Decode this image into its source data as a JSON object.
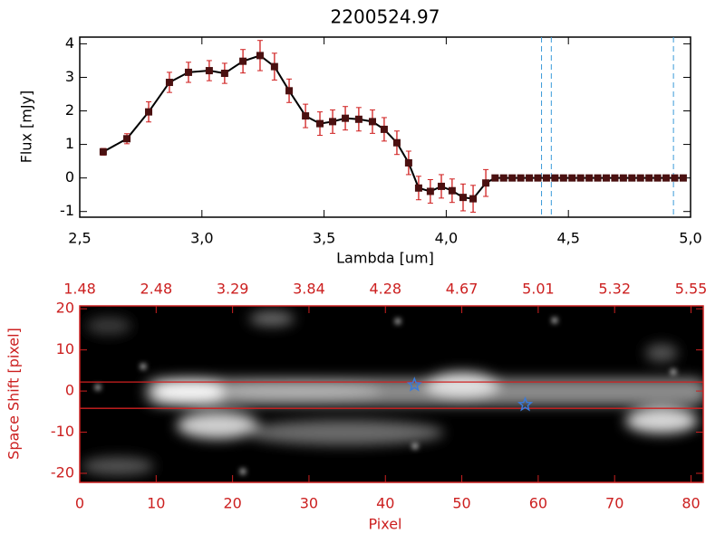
{
  "chart_data": [
    {
      "type": "line",
      "title": "2200524.97",
      "xlabel": "Lambda [um]",
      "ylabel": "Flux [mJy]",
      "x": [
        2.596,
        2.693,
        2.782,
        2.867,
        2.945,
        3.03,
        3.093,
        3.168,
        3.238,
        3.297,
        3.357,
        3.424,
        3.483,
        3.535,
        3.587,
        3.642,
        3.698,
        3.746,
        3.798,
        3.846,
        3.887,
        3.935,
        3.98,
        4.024,
        4.069,
        4.11,
        4.162,
        4.2,
        4.235,
        4.27,
        4.305,
        4.34,
        4.375,
        4.41,
        4.445,
        4.48,
        4.515,
        4.55,
        4.585,
        4.62,
        4.655,
        4.69,
        4.725,
        4.76,
        4.795,
        4.83,
        4.865,
        4.9,
        4.935,
        4.97
      ],
      "values": [
        0.78,
        1.17,
        1.97,
        2.85,
        3.15,
        3.2,
        3.12,
        3.48,
        3.65,
        3.32,
        2.6,
        1.85,
        1.62,
        1.68,
        1.78,
        1.75,
        1.68,
        1.45,
        1.05,
        0.45,
        -0.3,
        -0.4,
        -0.25,
        -0.38,
        -0.58,
        -0.62,
        -0.15,
        0,
        0,
        0,
        0,
        0,
        0,
        0,
        0,
        0,
        0,
        0,
        0,
        0,
        0,
        0,
        0,
        0,
        0,
        0,
        0,
        0,
        0,
        0
      ],
      "errors": [
        0.1,
        0.15,
        0.3,
        0.3,
        0.3,
        0.3,
        0.3,
        0.35,
        0.45,
        0.4,
        0.35,
        0.35,
        0.35,
        0.35,
        0.35,
        0.35,
        0.35,
        0.35,
        0.35,
        0.35,
        0.35,
        0.35,
        0.35,
        0.35,
        0.4,
        0.4,
        0.4,
        null,
        null,
        null,
        null,
        null,
        null,
        null,
        null,
        null,
        null,
        null,
        null,
        null,
        null,
        null,
        null,
        null,
        null,
        null,
        null,
        null,
        null,
        null
      ],
      "color": "#000000",
      "marker_color": "#4a1010",
      "error_color": "#d02020",
      "vlines": [
        4.39,
        4.43,
        4.93
      ],
      "vline_color": "#3a9ad9",
      "xlim": [
        2.5,
        5.0
      ],
      "ylim": [
        -1.17,
        4.2
      ],
      "xticks": [
        {
          "value": 2.5,
          "label": "2,5"
        },
        {
          "value": 3.0,
          "label": "3,0"
        },
        {
          "value": 3.5,
          "label": "3,5"
        },
        {
          "value": 4.0,
          "label": "4,0"
        },
        {
          "value": 4.5,
          "label": "4,5"
        },
        {
          "value": 5.0,
          "label": "5,0"
        }
      ],
      "yticks": [
        -1,
        0,
        1,
        2,
        3,
        4
      ]
    },
    {
      "type": "image",
      "xlabel": "Pixel",
      "ylabel": "Space Shift [pixel]",
      "axis_color": "#cc2020",
      "xlim": [
        0,
        81.6
      ],
      "ylim": [
        -22.2,
        20.7
      ],
      "xticks": [
        0,
        10,
        20,
        30,
        40,
        50,
        60,
        70,
        80
      ],
      "x2ticks": [
        {
          "value": 0,
          "label": "1.48"
        },
        {
          "value": 10,
          "label": "2.48"
        },
        {
          "value": 20,
          "label": "3.29"
        },
        {
          "value": 30,
          "label": "3.84"
        },
        {
          "value": 40,
          "label": "4.28"
        },
        {
          "value": 50,
          "label": "4.67"
        },
        {
          "value": 60,
          "label": "5.01"
        },
        {
          "value": 70,
          "label": "5.32"
        },
        {
          "value": 80,
          "label": "5.55"
        }
      ],
      "yticks": [
        -20,
        -10,
        0,
        10,
        20
      ],
      "hlines": [
        2.2,
        -4.2
      ],
      "hline_color": "#d02020",
      "stars": {
        "x": [
          43.8,
          58.3
        ],
        "y": [
          1.5,
          -3.3
        ]
      },
      "star_color": "#3a7ad9"
    }
  ]
}
